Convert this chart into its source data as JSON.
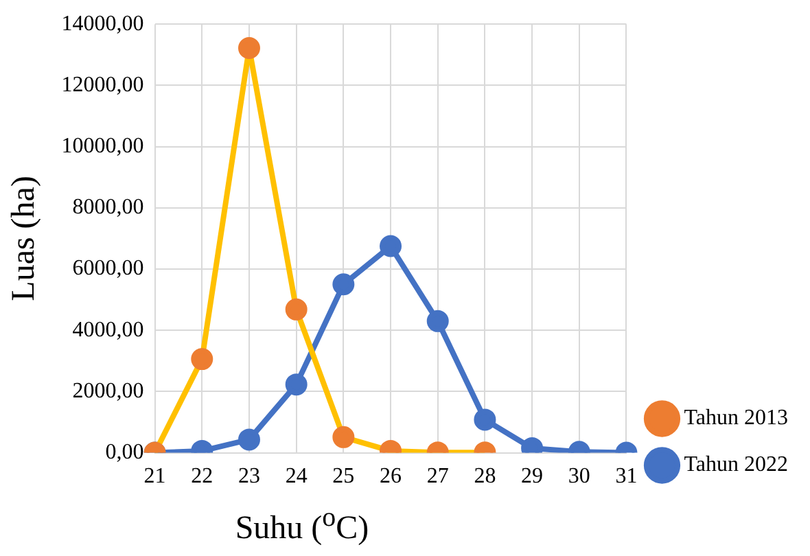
{
  "chart_data": {
    "type": "line",
    "xlabel": "Suhu ($^{o}$C)",
    "ylabel": "Luas (ha)",
    "categories": [
      "21",
      "22",
      "23",
      "24",
      "25",
      "26",
      "27",
      "28",
      "29",
      "30",
      "31"
    ],
    "series": [
      {
        "name": "Tahun 2022",
        "color": "#4472c4",
        "values": [
          0,
          60,
          430,
          2230,
          5500,
          6750,
          4300,
          1080,
          150,
          30,
          0
        ]
      },
      {
        "name": "Tahun 2013",
        "color": "#ffc000",
        "colors": [
          "#ed7d31",
          "#ed7d31",
          "#ed7d31",
          "#ed7d31",
          "#ed7d31",
          "#ed7d31",
          "#ed7d31",
          "#ed7d31",
          null,
          null,
          null
        ],
        "values": [
          0,
          3060,
          13220,
          4680,
          510,
          60,
          10,
          10,
          null,
          null,
          null
        ]
      }
    ],
    "ylim": [
      0,
      14000
    ],
    "yticks": [
      {
        "value": 0,
        "label": "0,00"
      },
      {
        "value": 2000,
        "label": "2000,00"
      },
      {
        "value": 4000,
        "label": "4000,00"
      },
      {
        "value": 6000,
        "label": "6000,00"
      },
      {
        "value": 8000,
        "label": "8000,00"
      },
      {
        "value": 10000,
        "label": "10000,00"
      },
      {
        "value": 12000,
        "label": "12000,00"
      },
      {
        "value": 14000,
        "label": "14000,00"
      }
    ],
    "grid": true,
    "legend": "right",
    "marker": "circle",
    "line_style": "solid"
  }
}
